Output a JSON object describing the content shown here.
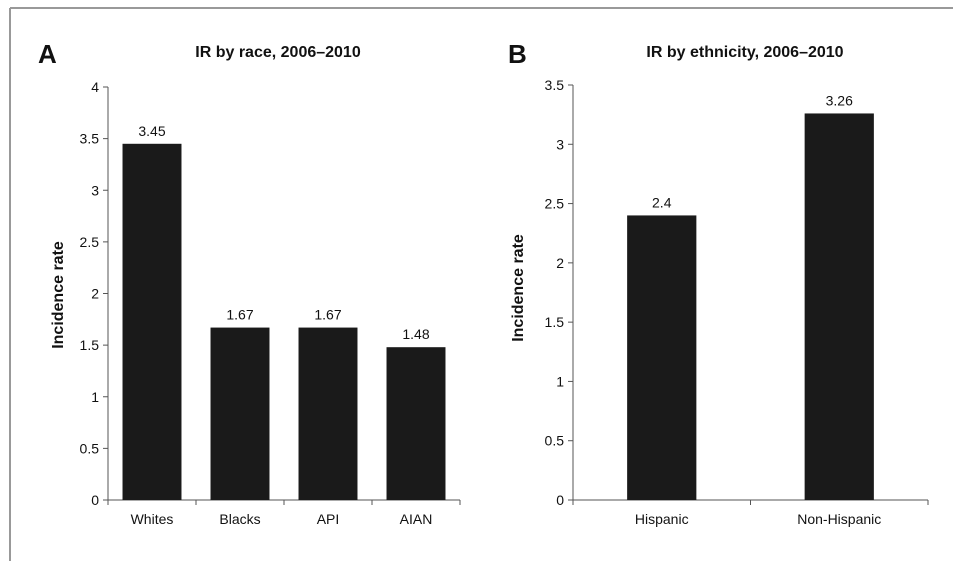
{
  "chart_data": [
    {
      "panel_label": "A",
      "type": "bar",
      "title": "IR by race, 2006–2010",
      "xlabel": "",
      "ylabel": "Incidence rate",
      "categories": [
        "Whites",
        "Blacks",
        "API",
        "AIAN"
      ],
      "values": [
        3.45,
        1.67,
        1.67,
        1.48
      ],
      "value_labels": [
        "3.45",
        "1.67",
        "1.67",
        "1.48"
      ],
      "ylim": [
        0,
        4
      ],
      "yticks": [
        "0",
        "0.5",
        "1",
        "1.5",
        "2",
        "2.5",
        "3",
        "3.5",
        "4"
      ],
      "bar_color": "#1a1a1a",
      "grid": false
    },
    {
      "panel_label": "B",
      "type": "bar",
      "title": "IR by ethnicity, 2006–2010",
      "xlabel": "",
      "ylabel": "Incidence rate",
      "categories": [
        "Hispanic",
        "Non-Hispanic"
      ],
      "values": [
        2.4,
        3.26
      ],
      "value_labels": [
        "2.4",
        "3.26"
      ],
      "ylim": [
        0,
        3.5
      ],
      "yticks": [
        "0",
        "0.5",
        "1",
        "1.5",
        "2",
        "2.5",
        "3",
        "3.5"
      ],
      "bar_color": "#1a1a1a",
      "grid": false
    }
  ],
  "colors": {
    "frame_border": "#999999",
    "axis": "#555555",
    "text": "#111111"
  }
}
